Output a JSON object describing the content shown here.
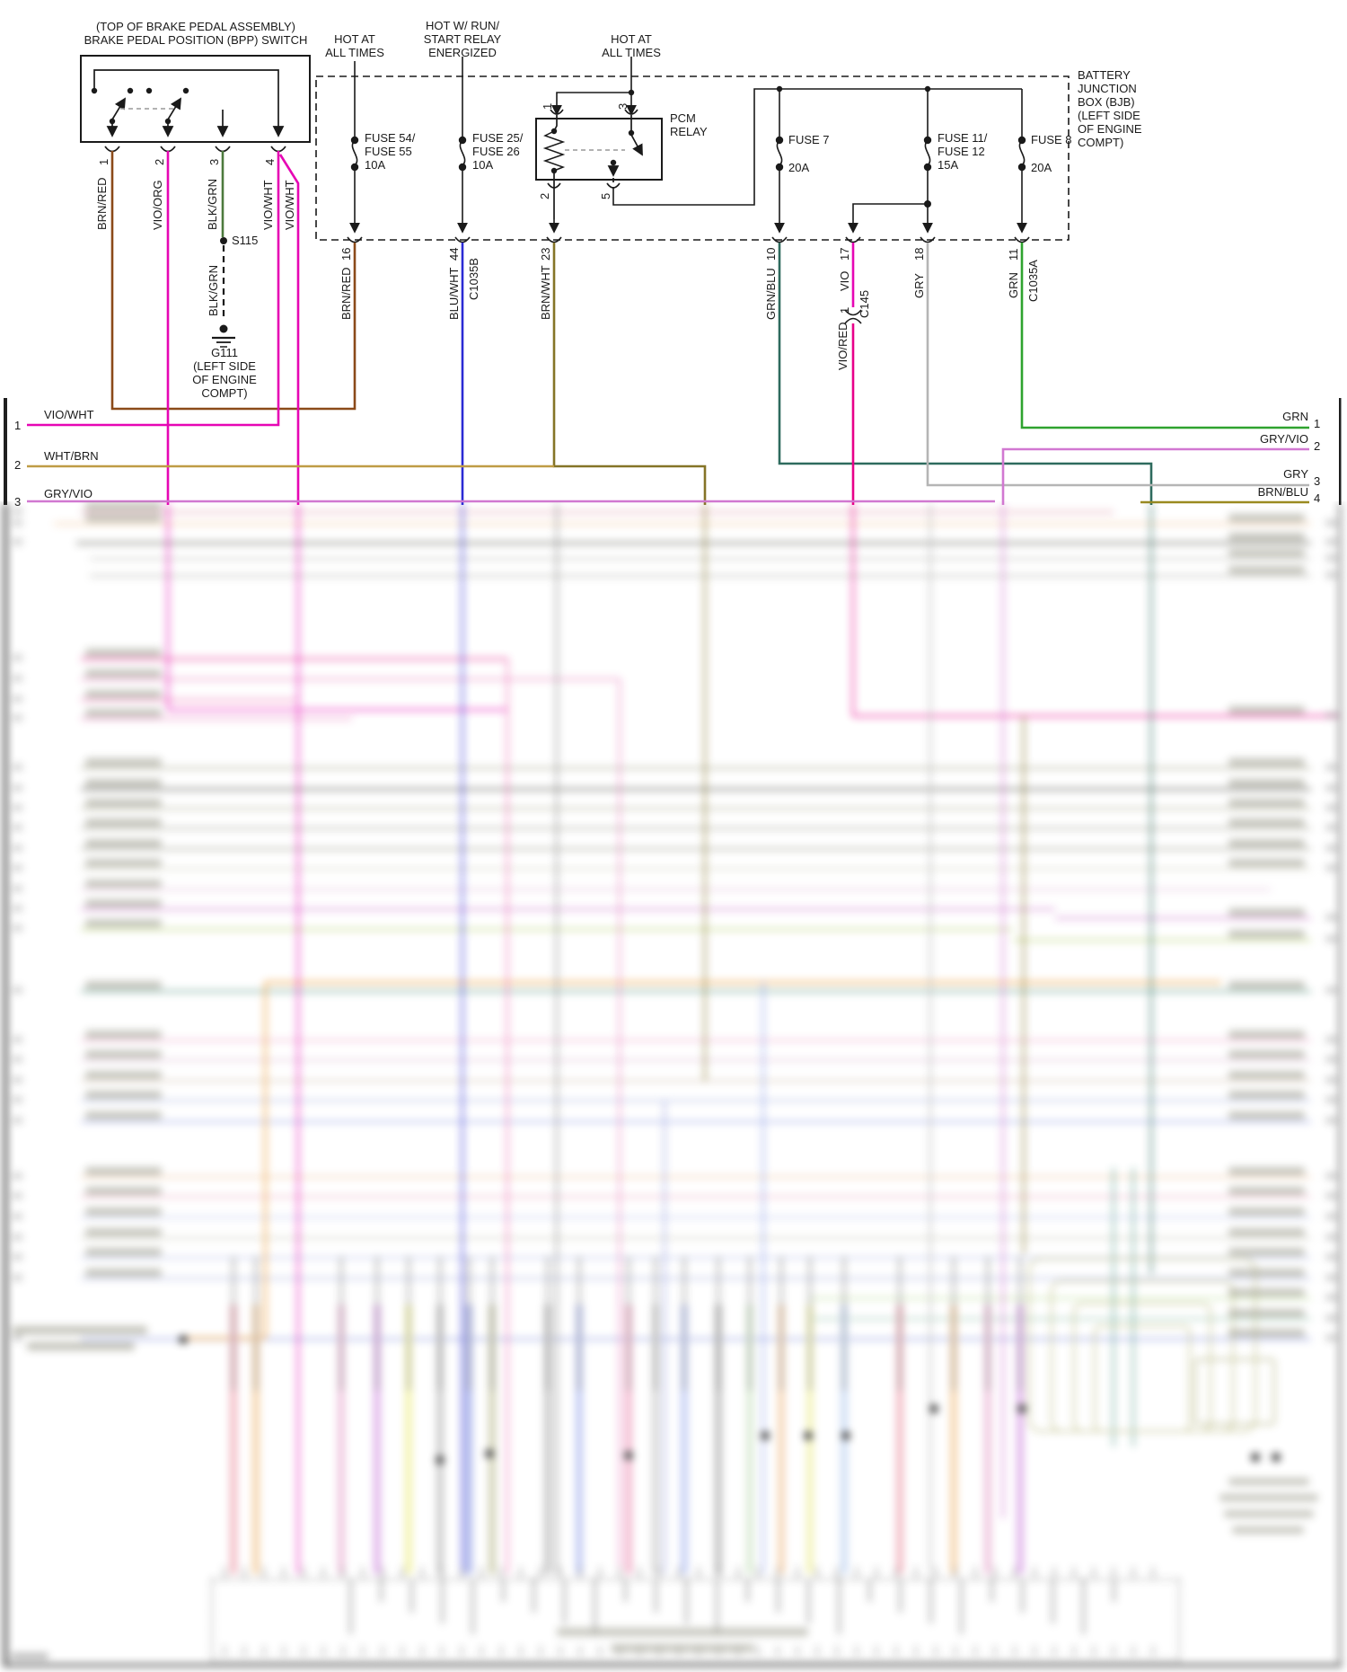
{
  "diagram": {
    "bpp_switch": {
      "caption": "(TOP OF BRAKE PEDAL ASSEMBLY)\nBRAKE PEDAL POSITION (BPP) SWITCH",
      "pins": [
        {
          "number": "1",
          "wire": "BRN/RED"
        },
        {
          "number": "2",
          "wire": "VIO/ORG"
        },
        {
          "number": "3",
          "wire": "BLK/GRN"
        },
        {
          "number": "4",
          "wire": "VIO/WHT",
          "wire2": "VIO/WHT"
        }
      ]
    },
    "splice": "S115",
    "splice_wire": "BLK/GRN",
    "ground": {
      "id": "G111",
      "location": "(LEFT SIDE\nOF ENGINE\nCOMPT)"
    },
    "power_sources": [
      {
        "label": "HOT AT\nALL TIMES"
      },
      {
        "label": "HOT W/ RUN/\nSTART RELAY\nENERGIZED"
      },
      {
        "label": "HOT AT\nALL TIMES"
      }
    ],
    "bjb_label": "BATTERY\nJUNCTION\nBOX (BJB)\n(LEFT SIDE\nOF ENGINE\nCOMPT)",
    "fuses": [
      {
        "label": "FUSE 54/\nFUSE 55\n10A"
      },
      {
        "label": "FUSE 25/\nFUSE 26\n10A"
      },
      {
        "label": "FUSE 7",
        "amps": "20A"
      },
      {
        "label": "FUSE 11/\nFUSE 12\n15A"
      },
      {
        "label": "FUSE 8",
        "amps": "20A"
      }
    ],
    "relay": {
      "name": "PCM\nRELAY",
      "pin_top_left": "1",
      "pin_top_right": "3",
      "pin_bottom_left": "2",
      "pin_bottom_right": "5"
    },
    "outputs": [
      {
        "pin": "16",
        "wire": "BRN/RED"
      },
      {
        "pin": "44",
        "wire": "BLU/WHT",
        "connector": "C1035B"
      },
      {
        "pin": "23",
        "wire": "BRN/WHT"
      },
      {
        "pin": "10",
        "wire": "GRN/BLU"
      },
      {
        "pin": "17",
        "wire": "VIO",
        "connector_pin": "1",
        "connector": "C145",
        "wire_below": "VIO/RED"
      },
      {
        "pin": "18",
        "wire": "GRY"
      },
      {
        "pin": "11",
        "wire": "GRN",
        "connector": "C1035A"
      }
    ],
    "left_offpage": [
      {
        "num": "1",
        "wire": "VIO/WHT"
      },
      {
        "num": "2",
        "wire": "WHT/BRN"
      },
      {
        "num": "3",
        "wire": "GRY/VIO"
      }
    ],
    "right_offpage": [
      {
        "num": "1",
        "wire": "GRN"
      },
      {
        "num": "2",
        "wire": "GRY/VIO"
      },
      {
        "num": "3",
        "wire": "GRY"
      },
      {
        "num": "4",
        "wire": "BRN/BLU"
      }
    ],
    "colors": {
      "brn_red": "#8B4A19",
      "vio": "#E606B4",
      "blk_grn": "#4C7A3D",
      "blu_wht": "#2B2BD4",
      "brn_wht": "#857427",
      "grn_blu": "#2E6B5E",
      "gry": "#B5B5B5",
      "grn": "#2FA32F",
      "gry_vio": "#D178D1",
      "wht_brn": "#BF9C45",
      "brn_blu": "#9A8A20",
      "vio_red": "#E80088"
    }
  }
}
